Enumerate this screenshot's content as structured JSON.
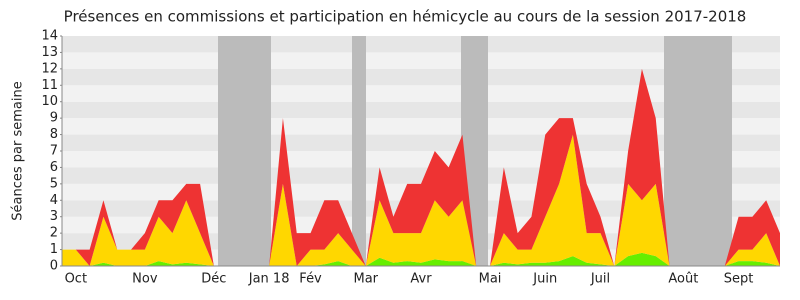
{
  "chart_data": {
    "type": "stacked_area",
    "title": "Présences en commissions et participation en hémicycle au cours de la session 2017-2018",
    "y_label": "Séances par semaine",
    "categories": [
      null,
      "Oct",
      null,
      null,
      null,
      null,
      "Nov",
      null,
      null,
      null,
      null,
      "Déc",
      null,
      null,
      null,
      "Jan 18",
      null,
      null,
      "Fév",
      null,
      null,
      null,
      "Mar",
      null,
      null,
      null,
      "Avr",
      null,
      null,
      null,
      null,
      "Mai",
      null,
      null,
      null,
      "Juin",
      null,
      null,
      null,
      "Juil",
      null,
      null,
      null,
      null,
      null,
      "Août",
      null,
      null,
      null,
      "Sept",
      null,
      null,
      null
    ],
    "series": [
      {
        "color": "#66ee00",
        "values": [
          0,
          0,
          0,
          0.2,
          0,
          0,
          0,
          0.3,
          0.1,
          0.2,
          0.1,
          0,
          0,
          0,
          0,
          0,
          0,
          0,
          0,
          0.1,
          0.3,
          0,
          0,
          0.5,
          0.2,
          0.3,
          0.2,
          0.4,
          0.3,
          0.3,
          0,
          0,
          0.2,
          0.1,
          0.2,
          0.2,
          0.3,
          0.6,
          0.2,
          0.1,
          0,
          0.6,
          0.8,
          0.6,
          0,
          0,
          0,
          0,
          0,
          0.3,
          0.3,
          0.2,
          0
        ]
      },
      {
        "color": "#ffd700",
        "values": [
          1,
          1,
          0,
          2.8,
          1,
          1,
          1,
          2.7,
          1.9,
          3.8,
          1.9,
          0,
          0,
          0,
          0,
          0,
          5,
          0,
          1,
          0.9,
          1.7,
          1,
          0,
          3.5,
          1.8,
          1.7,
          1.8,
          3.6,
          2.7,
          3.7,
          0,
          0,
          1.8,
          0.9,
          0.8,
          2.8,
          4.7,
          7.4,
          1.8,
          1.9,
          0,
          4.4,
          3.2,
          4.4,
          0,
          0,
          0,
          0,
          0,
          0.7,
          0.7,
          1.8,
          0
        ]
      },
      {
        "color": "#ee3333",
        "values": [
          0,
          0,
          1,
          1,
          0,
          0,
          1,
          1,
          2,
          1,
          3,
          0,
          0,
          0,
          0,
          0,
          4,
          2,
          1,
          3,
          2,
          1,
          0,
          2,
          1,
          3,
          3,
          3,
          3,
          4,
          0,
          0,
          4,
          1,
          2,
          5,
          4,
          1,
          3,
          1,
          0,
          2,
          8,
          4,
          0,
          0,
          0,
          0,
          0,
          2,
          2,
          2,
          2
        ]
      }
    ],
    "ylim": [
      0,
      14
    ],
    "yticks": [
      0,
      1,
      2,
      3,
      4,
      5,
      6,
      7,
      8,
      9,
      10,
      11,
      12,
      13,
      14
    ],
    "grid": true
  }
}
